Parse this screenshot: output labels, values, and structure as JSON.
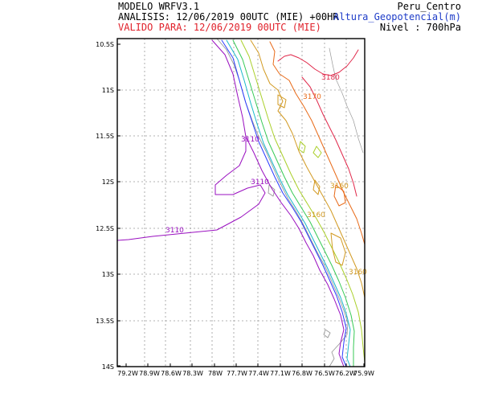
{
  "header": {
    "model": "MODELO WRFV3.1",
    "analysis": "ANALISIS: 12/06/2019 00UTC (MIE) +00HR",
    "valid": "VALIDO PARA: 12/06/2019 00UTC (MIE)",
    "domain": "Peru_Centro",
    "variable": "Altura_Geopotencial(m)",
    "level": "Nivel : 700hPa"
  },
  "colors": {
    "valid_text": "#e0202a",
    "variable_text": "#1e3cc8",
    "c3110": "#9a10c0",
    "c3120": "#2a3aff",
    "c3130": "#19b9c9",
    "c3140": "#37c956",
    "c3150": "#aacf2a",
    "c3160": "#d29a22",
    "c3170": "#e86a18",
    "c3180": "#e0284a",
    "coast": "#9a9a9a"
  },
  "map": {
    "lat_labels": [
      "10.5S",
      "11S",
      "11.5S",
      "12S",
      "12.5S",
      "13S",
      "13.5S",
      "14S"
    ],
    "lon_labels": [
      "79.2W",
      "78.9W",
      "78.6W",
      "78.3W",
      "78W",
      "77.7W",
      "77.4W",
      "77.1W",
      "76.8W",
      "76.5W",
      "76.2W",
      "75.9W"
    ],
    "contour_labels": [
      {
        "text": "3110",
        "level": 3110
      },
      {
        "text": "3110",
        "level": 3110
      },
      {
        "text": "3110",
        "level": 3110
      },
      {
        "text": "3160",
        "level": 3160
      },
      {
        "text": "3160",
        "level": 3160
      },
      {
        "text": "3160",
        "level": 3160
      },
      {
        "text": "3170",
        "level": 3170
      },
      {
        "text": "3180",
        "level": 3180
      }
    ]
  }
}
